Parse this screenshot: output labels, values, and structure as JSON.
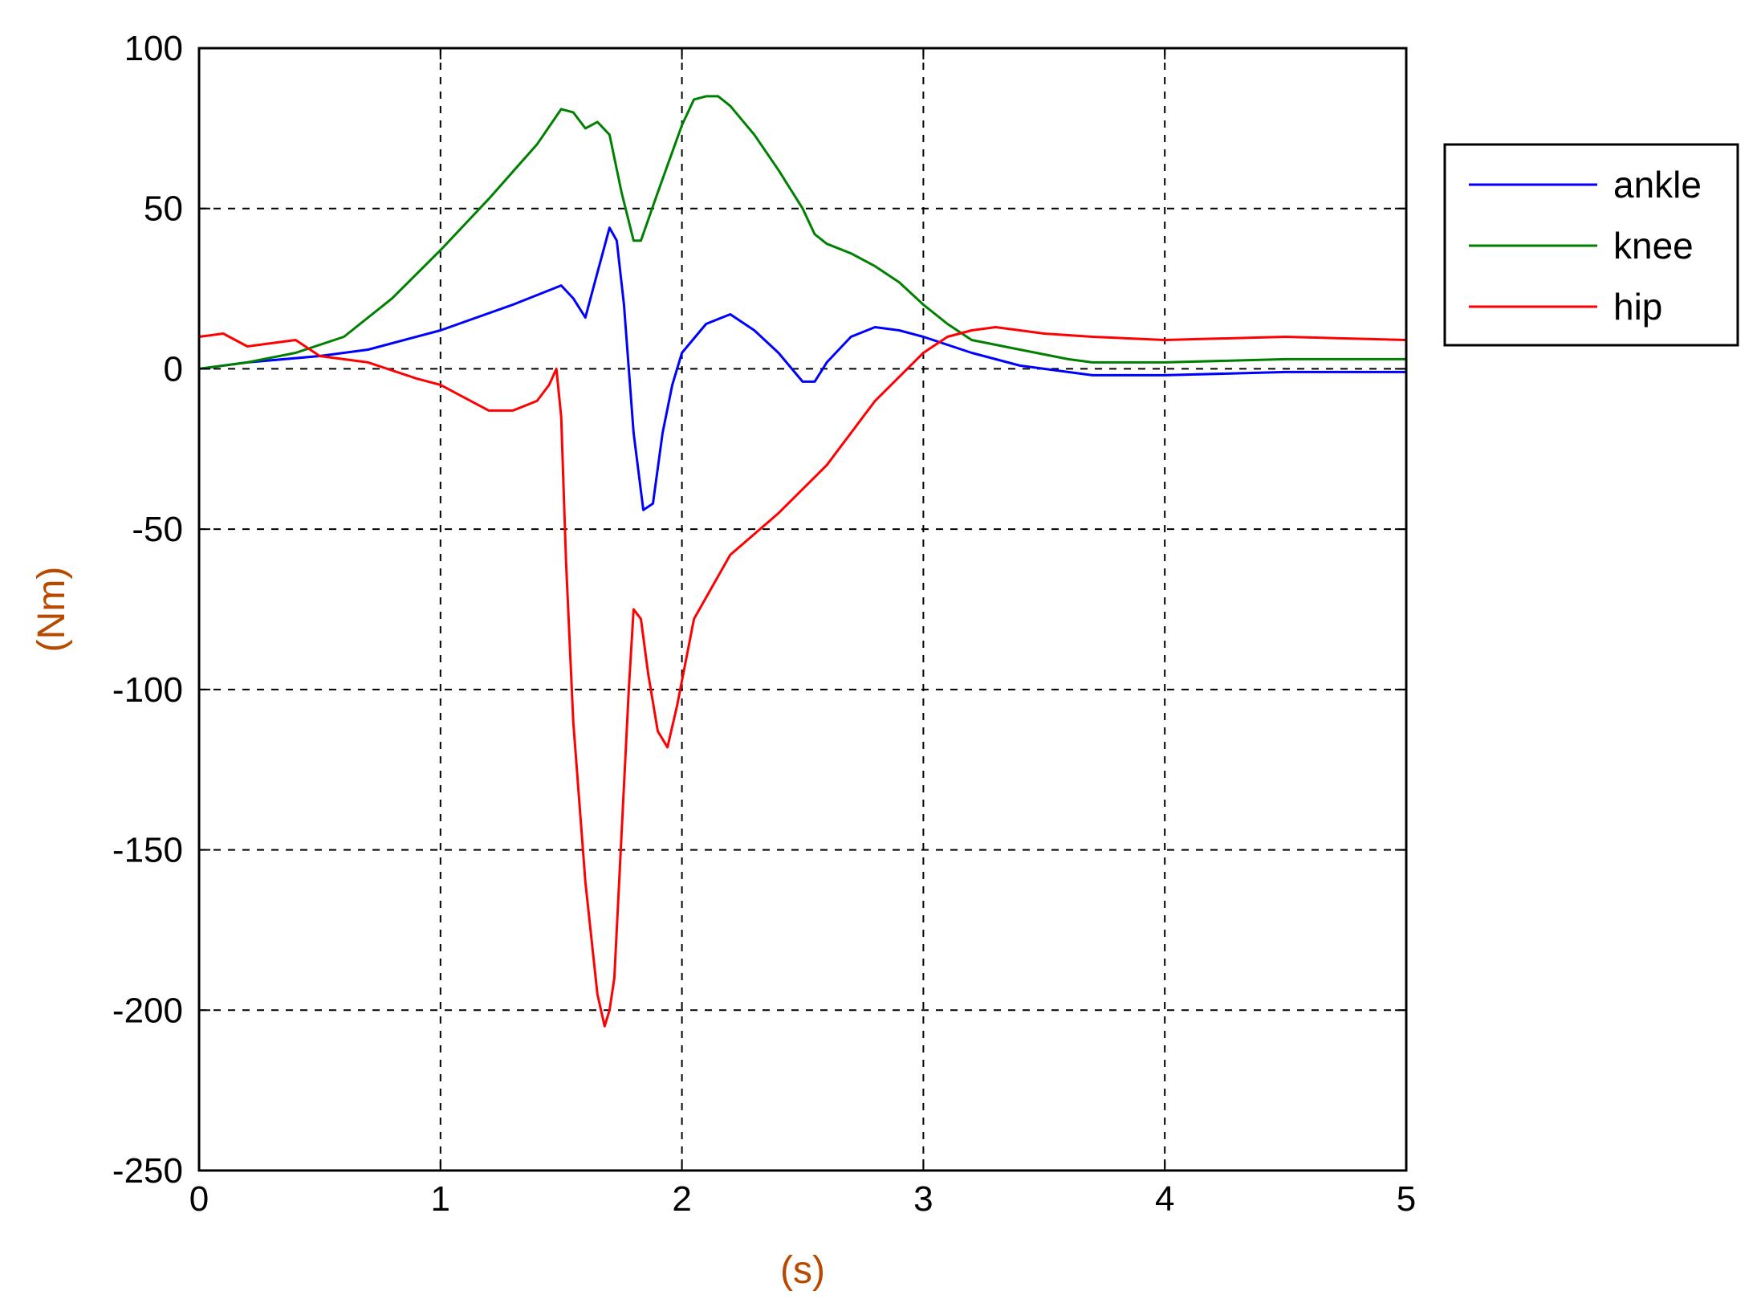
{
  "chart_data": {
    "type": "line",
    "title": "",
    "xlabel": "(s)",
    "ylabel": "(Nm)",
    "xlim": [
      0,
      5
    ],
    "ylim": [
      -250,
      100
    ],
    "x_ticks": [
      0,
      1,
      2,
      3,
      4,
      5
    ],
    "y_ticks": [
      100,
      50,
      0,
      -50,
      -100,
      -150,
      -200,
      -250
    ],
    "x_tick_labels": [
      "0",
      "1",
      "2",
      "3",
      "4",
      "5"
    ],
    "y_tick_labels": [
      "100",
      "50",
      "0",
      "-50",
      "-100",
      "-150",
      "-200",
      "-250"
    ],
    "grid": true,
    "grid_style": "dashed",
    "legend_position": "outside-right-top",
    "label_color": "#b84a00",
    "series": [
      {
        "name": "ankle",
        "color": "#0000ff",
        "x": [
          0,
          0.2,
          0.5,
          0.7,
          1.0,
          1.3,
          1.5,
          1.55,
          1.6,
          1.65,
          1.7,
          1.73,
          1.76,
          1.8,
          1.84,
          1.88,
          1.92,
          1.96,
          2.0,
          2.1,
          2.2,
          2.3,
          2.4,
          2.5,
          2.55,
          2.6,
          2.7,
          2.8,
          2.9,
          3.0,
          3.2,
          3.4,
          3.7,
          4.0,
          4.5,
          5.0
        ],
        "y": [
          0,
          2,
          4,
          6,
          12,
          20,
          26,
          22,
          16,
          30,
          44,
          40,
          20,
          -20,
          -44,
          -42,
          -20,
          -5,
          5,
          14,
          17,
          12,
          5,
          -4,
          -4,
          2,
          10,
          13,
          12,
          10,
          5,
          1,
          -2,
          -2,
          -1,
          -1
        ]
      },
      {
        "name": "knee",
        "color": "#008000",
        "x": [
          0,
          0.2,
          0.4,
          0.6,
          0.8,
          1.0,
          1.2,
          1.4,
          1.5,
          1.55,
          1.6,
          1.65,
          1.7,
          1.75,
          1.8,
          1.83,
          1.9,
          2.0,
          2.05,
          2.1,
          2.15,
          2.2,
          2.3,
          2.4,
          2.5,
          2.55,
          2.6,
          2.7,
          2.8,
          2.9,
          3.0,
          3.1,
          3.2,
          3.4,
          3.6,
          3.7,
          4.0,
          4.5,
          5.0
        ],
        "y": [
          0,
          2,
          5,
          10,
          22,
          37,
          53,
          70,
          81,
          80,
          75,
          77,
          73,
          55,
          40,
          40,
          55,
          76,
          84,
          85,
          85,
          82,
          73,
          62,
          50,
          42,
          39,
          36,
          32,
          27,
          20,
          14,
          9,
          6,
          3,
          2,
          2,
          3,
          3
        ]
      },
      {
        "name": "hip",
        "color": "#ff0000",
        "x": [
          0,
          0.1,
          0.2,
          0.3,
          0.4,
          0.5,
          0.7,
          0.9,
          1.0,
          1.1,
          1.2,
          1.3,
          1.4,
          1.45,
          1.48,
          1.5,
          1.52,
          1.55,
          1.6,
          1.65,
          1.68,
          1.7,
          1.72,
          1.74,
          1.76,
          1.78,
          1.8,
          1.83,
          1.86,
          1.9,
          1.94,
          1.98,
          2.05,
          2.2,
          2.4,
          2.6,
          2.8,
          3.0,
          3.1,
          3.2,
          3.3,
          3.4,
          3.5,
          3.7,
          4.0,
          4.5,
          5.0
        ],
        "y": [
          10,
          11,
          7,
          8,
          9,
          4,
          2,
          -3,
          -5,
          -9,
          -13,
          -13,
          -10,
          -5,
          0,
          -15,
          -60,
          -110,
          -160,
          -195,
          -205,
          -200,
          -190,
          -160,
          -130,
          -100,
          -75,
          -78,
          -95,
          -113,
          -118,
          -105,
          -78,
          -58,
          -45,
          -30,
          -10,
          5,
          10,
          12,
          13,
          12,
          11,
          10,
          9,
          10,
          9
        ]
      }
    ]
  }
}
